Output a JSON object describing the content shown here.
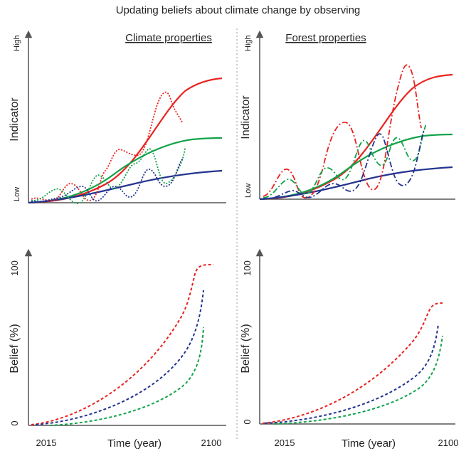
{
  "title": "Updating beliefs about climate change by observing",
  "panels": {
    "climate_top": {
      "heading": "Climate properties",
      "ylabel": "Indicator",
      "y_high": "High",
      "y_low": "Low"
    },
    "forest_top": {
      "heading": "Forest properties",
      "ylabel": "Indicator",
      "y_high": "High",
      "y_low": "Low"
    },
    "climate_bottom": {
      "ylabel": "Belief (%)",
      "y_top": "100",
      "y_zero": "0",
      "x_start": "2015",
      "x_end": "2100",
      "xlabel": "Time (year)"
    },
    "forest_bottom": {
      "ylabel": "Belief (%)",
      "y_top": "100",
      "y_zero": "0",
      "x_start": "2015",
      "x_end": "2100",
      "xlabel": "Time (year)"
    }
  },
  "colors": {
    "red": "#e8231f",
    "green": "#12a34a",
    "blue": "#24348f",
    "axis": "#555555",
    "divider": "#9a9a9a"
  }
}
